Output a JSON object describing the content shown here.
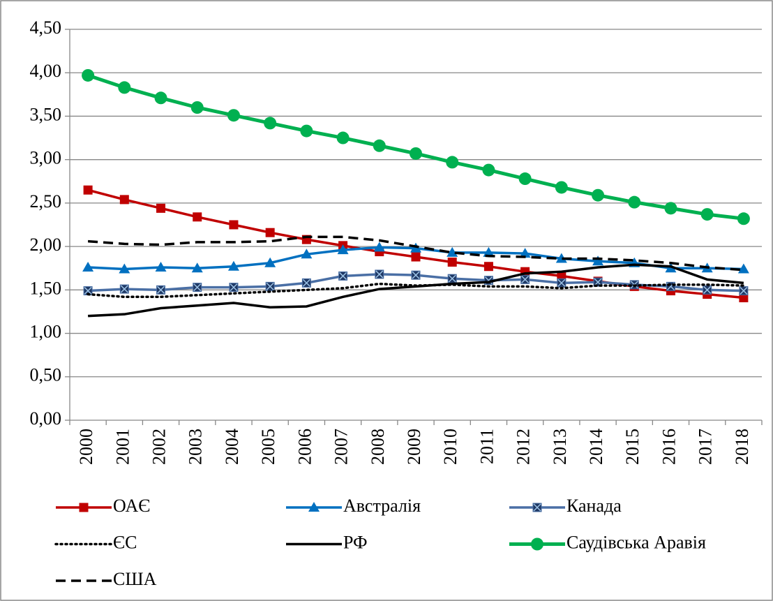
{
  "chart_data": {
    "type": "line",
    "categories": [
      "2000",
      "2001",
      "2002",
      "2003",
      "2004",
      "2005",
      "2006",
      "2007",
      "2008",
      "2009",
      "2010",
      "2011",
      "2012",
      "2013",
      "2014",
      "2015",
      "2016",
      "2017",
      "2018"
    ],
    "ylim": [
      0,
      4.5
    ],
    "yticks": [
      {
        "value": 0,
        "label": "0,00"
      },
      {
        "value": 0.5,
        "label": "0,50"
      },
      {
        "value": 1,
        "label": "1,00"
      },
      {
        "value": 1.5,
        "label": "1,50"
      },
      {
        "value": 2,
        "label": "2,00"
      },
      {
        "value": 2.5,
        "label": "2,50"
      },
      {
        "value": 3,
        "label": "3,00"
      },
      {
        "value": 3.5,
        "label": "3,50"
      },
      {
        "value": 4,
        "label": "4,00"
      },
      {
        "value": 4.5,
        "label": "4,50"
      }
    ],
    "grid": true,
    "legend": "bottom",
    "series": [
      {
        "name": "ОАЄ",
        "color": "#c00000",
        "marker": "square",
        "dash": "solid",
        "values": [
          2.65,
          2.54,
          2.44,
          2.34,
          2.25,
          2.16,
          2.08,
          2.01,
          1.94,
          1.88,
          1.82,
          1.77,
          1.71,
          1.66,
          1.6,
          1.54,
          1.49,
          1.45,
          1.41
        ]
      },
      {
        "name": "Австралія",
        "color": "#0070c0",
        "marker": "triangle",
        "dash": "solid",
        "values": [
          1.76,
          1.74,
          1.76,
          1.75,
          1.77,
          1.81,
          1.91,
          1.96,
          1.99,
          1.98,
          1.93,
          1.93,
          1.92,
          1.86,
          1.83,
          1.81,
          1.75,
          1.75,
          1.74
        ]
      },
      {
        "name": "Канада",
        "color": "#4a6fa5",
        "marker": "x-square",
        "dash": "solid",
        "values": [
          1.49,
          1.51,
          1.5,
          1.53,
          1.53,
          1.54,
          1.58,
          1.66,
          1.68,
          1.67,
          1.63,
          1.61,
          1.62,
          1.58,
          1.59,
          1.56,
          1.54,
          1.5,
          1.49
        ]
      },
      {
        "name": "ЄС",
        "color": "#000000",
        "marker": "none",
        "dash": "dotted",
        "values": [
          1.45,
          1.42,
          1.42,
          1.44,
          1.46,
          1.48,
          1.5,
          1.52,
          1.57,
          1.55,
          1.56,
          1.54,
          1.54,
          1.52,
          1.55,
          1.55,
          1.56,
          1.56,
          1.55
        ]
      },
      {
        "name": "РФ",
        "color": "#000000",
        "marker": "none",
        "dash": "solid",
        "values": [
          1.2,
          1.22,
          1.29,
          1.32,
          1.35,
          1.3,
          1.31,
          1.42,
          1.51,
          1.54,
          1.57,
          1.59,
          1.69,
          1.71,
          1.76,
          1.79,
          1.77,
          1.62,
          1.58
        ]
      },
      {
        "name": "Саудівська Аравія",
        "color": "#00b050",
        "marker": "circle",
        "dash": "solid",
        "values": [
          3.97,
          3.83,
          3.71,
          3.6,
          3.51,
          3.42,
          3.33,
          3.25,
          3.16,
          3.07,
          2.97,
          2.88,
          2.78,
          2.68,
          2.59,
          2.51,
          2.44,
          2.37,
          2.32
        ]
      },
      {
        "name": "США",
        "color": "#000000",
        "marker": "none",
        "dash": "dashed",
        "values": [
          2.06,
          2.03,
          2.02,
          2.05,
          2.05,
          2.06,
          2.11,
          2.11,
          2.07,
          2.0,
          1.93,
          1.89,
          1.88,
          1.86,
          1.86,
          1.84,
          1.81,
          1.76,
          1.73
        ]
      }
    ]
  }
}
